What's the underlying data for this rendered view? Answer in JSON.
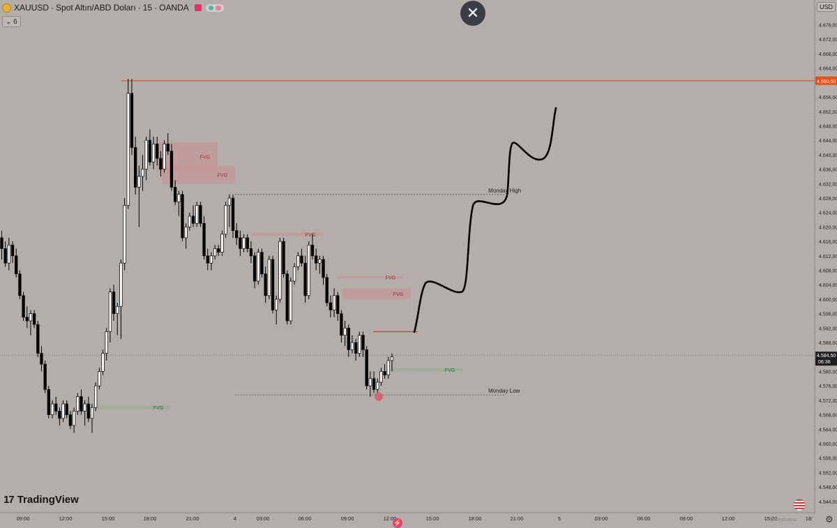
{
  "header": {
    "symbol": "XAUUSD",
    "description": "Spot Altın/ABD Doları",
    "interval": "15",
    "broker": "OANDA",
    "indicator_count": "6"
  },
  "price_axis": {
    "currency": "USD",
    "ticks": [
      "4.676,00",
      "4.672,00",
      "4.668,00",
      "4.664,00",
      "4.660,50",
      "4.656,00",
      "4.652,00",
      "4.648,00",
      "4.644,00",
      "4.640,00",
      "4.636,00",
      "4.632,00",
      "4.628,00",
      "4.624,00",
      "4.620,00",
      "4.616,00",
      "4.612,00",
      "4.608,00",
      "4.604,00",
      "4.600,00",
      "4.596,00",
      "4.592,00",
      "4.588,00",
      "4.584,50",
      "4.580,00",
      "4.576,00",
      "4.572,00",
      "4.568,00",
      "4.564,00",
      "4.560,00",
      "4.556,00",
      "4.552,00",
      "4.548,00",
      "4.544,00"
    ],
    "current_price": "4.584,50",
    "countdown": "06:36",
    "level_price": "4.660,50"
  },
  "time_axis": {
    "labels": [
      "09:00",
      "12:00",
      "15:00",
      "18:00",
      "21:00",
      "4",
      "03:00",
      "06:00",
      "09:00",
      "12:00",
      "15:00",
      "18:00",
      "21:00",
      "5",
      "03:00",
      "06:00",
      "09:00",
      "12:00",
      "15:00",
      "18:"
    ]
  },
  "branding": {
    "logo_text": "TradingView",
    "watermark": "@Rayhanoo"
  },
  "icons": [
    "close-icon",
    "gear-icon",
    "bolt-icon",
    "us-flag-icon",
    "tradingview-logo-icon"
  ],
  "colors": {
    "background": "#b3aeaa",
    "resistance_line": "#e8501a",
    "fvg_bear": "#c98f8f",
    "fvg_bull": "#8fae8a",
    "red_line": "#e8404a",
    "projection": "#000000"
  },
  "chart_data": {
    "type": "candlestick",
    "symbol": "XAUUSD",
    "timeframe": "15",
    "ylim": [
      4543,
      4679
    ],
    "candles": [
      {
        "t": "07:30",
        "o": 4617,
        "h": 4619,
        "l": 4611,
        "c": 4614
      },
      {
        "t": "07:45",
        "o": 4614,
        "h": 4616,
        "l": 4609,
        "c": 4610
      },
      {
        "t": "08:00",
        "o": 4610,
        "h": 4617,
        "l": 4608,
        "c": 4615
      },
      {
        "t": "08:15",
        "o": 4615,
        "h": 4616,
        "l": 4610,
        "c": 4612
      },
      {
        "t": "08:30",
        "o": 4612,
        "h": 4614,
        "l": 4606,
        "c": 4607
      },
      {
        "t": "08:45",
        "o": 4607,
        "h": 4608,
        "l": 4600,
        "c": 4601
      },
      {
        "t": "09:00",
        "o": 4601,
        "h": 4602,
        "l": 4594,
        "c": 4595
      },
      {
        "t": "09:15",
        "o": 4595,
        "h": 4598,
        "l": 4592,
        "c": 4594
      },
      {
        "t": "09:30",
        "o": 4594,
        "h": 4597,
        "l": 4590,
        "c": 4596
      },
      {
        "t": "09:45",
        "o": 4596,
        "h": 4597,
        "l": 4592,
        "c": 4593
      },
      {
        "t": "10:00",
        "o": 4593,
        "h": 4594,
        "l": 4584,
        "c": 4585
      },
      {
        "t": "10:15",
        "o": 4585,
        "h": 4587,
        "l": 4580,
        "c": 4582
      },
      {
        "t": "10:30",
        "o": 4582,
        "h": 4583,
        "l": 4574,
        "c": 4575
      },
      {
        "t": "10:45",
        "o": 4575,
        "h": 4576,
        "l": 4567,
        "c": 4568
      },
      {
        "t": "11:00",
        "o": 4568,
        "h": 4572,
        "l": 4567,
        "c": 4571
      },
      {
        "t": "11:15",
        "o": 4571,
        "h": 4573,
        "l": 4568,
        "c": 4569
      },
      {
        "t": "11:30",
        "o": 4569,
        "h": 4570,
        "l": 4565,
        "c": 4567
      },
      {
        "t": "11:45",
        "o": 4567,
        "h": 4572,
        "l": 4566,
        "c": 4571
      },
      {
        "t": "12:00",
        "o": 4571,
        "h": 4572,
        "l": 4567,
        "c": 4568
      },
      {
        "t": "12:15",
        "o": 4568,
        "h": 4569,
        "l": 4564,
        "c": 4565
      },
      {
        "t": "12:30",
        "o": 4565,
        "h": 4570,
        "l": 4563,
        "c": 4569
      },
      {
        "t": "12:45",
        "o": 4569,
        "h": 4574,
        "l": 4568,
        "c": 4573
      },
      {
        "t": "13:00",
        "o": 4573,
        "h": 4575,
        "l": 4568,
        "c": 4569
      },
      {
        "t": "13:15",
        "o": 4569,
        "h": 4572,
        "l": 4565,
        "c": 4571
      },
      {
        "t": "13:30",
        "o": 4571,
        "h": 4573,
        "l": 4566,
        "c": 4567
      },
      {
        "t": "13:45",
        "o": 4567,
        "h": 4571,
        "l": 4563,
        "c": 4570
      },
      {
        "t": "14:00",
        "o": 4570,
        "h": 4577,
        "l": 4569,
        "c": 4576
      },
      {
        "t": "14:15",
        "o": 4576,
        "h": 4581,
        "l": 4575,
        "c": 4580
      },
      {
        "t": "14:30",
        "o": 4580,
        "h": 4586,
        "l": 4579,
        "c": 4585
      },
      {
        "t": "14:45",
        "o": 4585,
        "h": 4592,
        "l": 4583,
        "c": 4591
      },
      {
        "t": "15:00",
        "o": 4591,
        "h": 4603,
        "l": 4588,
        "c": 4602
      },
      {
        "t": "15:15",
        "o": 4602,
        "h": 4604,
        "l": 4594,
        "c": 4596
      },
      {
        "t": "15:30",
        "o": 4596,
        "h": 4599,
        "l": 4590,
        "c": 4598
      },
      {
        "t": "15:45",
        "o": 4598,
        "h": 4611,
        "l": 4589,
        "c": 4610
      },
      {
        "t": "16:00",
        "o": 4610,
        "h": 4628,
        "l": 4608,
        "c": 4626
      },
      {
        "t": "16:15",
        "o": 4626,
        "h": 4661,
        "l": 4625,
        "c": 4657
      },
      {
        "t": "16:30",
        "o": 4657,
        "h": 4661,
        "l": 4640,
        "c": 4642
      },
      {
        "t": "16:45",
        "o": 4642,
        "h": 4645,
        "l": 4629,
        "c": 4631
      },
      {
        "t": "17:00",
        "o": 4631,
        "h": 4637,
        "l": 4620,
        "c": 4634
      },
      {
        "t": "17:15",
        "o": 4634,
        "h": 4640,
        "l": 4630,
        "c": 4636
      },
      {
        "t": "17:30",
        "o": 4636,
        "h": 4645,
        "l": 4633,
        "c": 4644
      },
      {
        "t": "17:45",
        "o": 4644,
        "h": 4647,
        "l": 4637,
        "c": 4638
      },
      {
        "t": "18:00",
        "o": 4638,
        "h": 4645,
        "l": 4636,
        "c": 4643
      },
      {
        "t": "18:15",
        "o": 4643,
        "h": 4645,
        "l": 4637,
        "c": 4639
      },
      {
        "t": "18:30",
        "o": 4639,
        "h": 4641,
        "l": 4634,
        "c": 4636
      },
      {
        "t": "18:45",
        "o": 4636,
        "h": 4644,
        "l": 4635,
        "c": 4643
      },
      {
        "t": "19:00",
        "o": 4643,
        "h": 4646,
        "l": 4640,
        "c": 4641
      },
      {
        "t": "19:15",
        "o": 4641,
        "h": 4643,
        "l": 4630,
        "c": 4631
      },
      {
        "t": "19:30",
        "o": 4631,
        "h": 4633,
        "l": 4626,
        "c": 4627
      },
      {
        "t": "19:45",
        "o": 4627,
        "h": 4630,
        "l": 4623,
        "c": 4629
      },
      {
        "t": "20:00",
        "o": 4629,
        "h": 4630,
        "l": 4616,
        "c": 4617
      },
      {
        "t": "20:15",
        "o": 4617,
        "h": 4621,
        "l": 4614,
        "c": 4620
      },
      {
        "t": "20:30",
        "o": 4620,
        "h": 4624,
        "l": 4619,
        "c": 4623
      },
      {
        "t": "20:45",
        "o": 4623,
        "h": 4626,
        "l": 4620,
        "c": 4621
      },
      {
        "t": "21:00",
        "o": 4621,
        "h": 4627,
        "l": 4620,
        "c": 4626
      },
      {
        "t": "21:15",
        "o": 4626,
        "h": 4627,
        "l": 4620,
        "c": 4621
      },
      {
        "t": "21:30",
        "o": 4621,
        "h": 4623,
        "l": 4611,
        "c": 4612
      },
      {
        "t": "21:45",
        "o": 4612,
        "h": 4614,
        "l": 4608,
        "c": 4610
      },
      {
        "t": "22:00",
        "o": 4610,
        "h": 4613,
        "l": 4608,
        "c": 4612
      },
      {
        "t": "22:15",
        "o": 4612,
        "h": 4615,
        "l": 4611,
        "c": 4614
      },
      {
        "t": "22:30",
        "o": 4614,
        "h": 4615,
        "l": 4612,
        "c": 4613
      },
      {
        "t": "23:00",
        "o": 4613,
        "h": 4619,
        "l": 4612,
        "c": 4618
      },
      {
        "t": "23:15",
        "o": 4618,
        "h": 4627,
        "l": 4617,
        "c": 4626
      },
      {
        "t": "23:30",
        "o": 4626,
        "h": 4629,
        "l": 4620,
        "c": 4628
      },
      {
        "t": "23:45",
        "o": 4628,
        "h": 4629,
        "l": 4617,
        "c": 4619
      },
      {
        "t": "00:00",
        "o": 4619,
        "h": 4621,
        "l": 4615,
        "c": 4617
      },
      {
        "t": "00:15",
        "o": 4617,
        "h": 4619,
        "l": 4612,
        "c": 4614
      },
      {
        "t": "00:30",
        "o": 4614,
        "h": 4618,
        "l": 4613,
        "c": 4617
      },
      {
        "t": "00:45",
        "o": 4617,
        "h": 4618,
        "l": 4613,
        "c": 4614
      },
      {
        "t": "01:00",
        "o": 4614,
        "h": 4616,
        "l": 4610,
        "c": 4612
      },
      {
        "t": "01:15",
        "o": 4612,
        "h": 4613,
        "l": 4603,
        "c": 4605
      },
      {
        "t": "01:30",
        "o": 4605,
        "h": 4614,
        "l": 4604,
        "c": 4613
      },
      {
        "t": "01:45",
        "o": 4613,
        "h": 4614,
        "l": 4606,
        "c": 4607
      },
      {
        "t": "02:00",
        "o": 4607,
        "h": 4609,
        "l": 4599,
        "c": 4601
      },
      {
        "t": "02:15",
        "o": 4601,
        "h": 4612,
        "l": 4600,
        "c": 4611
      },
      {
        "t": "02:30",
        "o": 4611,
        "h": 4612,
        "l": 4596,
        "c": 4597
      },
      {
        "t": "02:45",
        "o": 4597,
        "h": 4601,
        "l": 4593,
        "c": 4600
      },
      {
        "t": "03:00",
        "o": 4600,
        "h": 4617,
        "l": 4599,
        "c": 4616
      },
      {
        "t": "03:15",
        "o": 4616,
        "h": 4617,
        "l": 4606,
        "c": 4607
      },
      {
        "t": "03:30",
        "o": 4607,
        "h": 4608,
        "l": 4593,
        "c": 4594
      },
      {
        "t": "03:45",
        "o": 4594,
        "h": 4606,
        "l": 4593,
        "c": 4605
      },
      {
        "t": "04:00",
        "o": 4605,
        "h": 4610,
        "l": 4604,
        "c": 4609
      },
      {
        "t": "04:15",
        "o": 4609,
        "h": 4613,
        "l": 4608,
        "c": 4612
      },
      {
        "t": "04:30",
        "o": 4612,
        "h": 4614,
        "l": 4609,
        "c": 4610
      },
      {
        "t": "04:45",
        "o": 4610,
        "h": 4612,
        "l": 4599,
        "c": 4601
      },
      {
        "t": "05:00",
        "o": 4601,
        "h": 4616,
        "l": 4600,
        "c": 4615
      },
      {
        "t": "05:15",
        "o": 4615,
        "h": 4618,
        "l": 4611,
        "c": 4612
      },
      {
        "t": "05:30",
        "o": 4612,
        "h": 4614,
        "l": 4608,
        "c": 4610
      },
      {
        "t": "05:45",
        "o": 4610,
        "h": 4612,
        "l": 4607,
        "c": 4611
      },
      {
        "t": "06:00",
        "o": 4611,
        "h": 4612,
        "l": 4604,
        "c": 4606
      },
      {
        "t": "06:15",
        "o": 4606,
        "h": 4607,
        "l": 4598,
        "c": 4599
      },
      {
        "t": "06:30",
        "o": 4599,
        "h": 4601,
        "l": 4595,
        "c": 4597
      },
      {
        "t": "06:45",
        "o": 4597,
        "h": 4603,
        "l": 4595,
        "c": 4601
      },
      {
        "t": "07:00",
        "o": 4601,
        "h": 4602,
        "l": 4594,
        "c": 4596
      },
      {
        "t": "07:15",
        "o": 4596,
        "h": 4597,
        "l": 4588,
        "c": 4590
      },
      {
        "t": "07:30",
        "o": 4590,
        "h": 4594,
        "l": 4587,
        "c": 4592
      },
      {
        "t": "07:45",
        "o": 4592,
        "h": 4593,
        "l": 4584,
        "c": 4586
      },
      {
        "t": "08:00",
        "o": 4586,
        "h": 4590,
        "l": 4585,
        "c": 4588
      },
      {
        "t": "08:15",
        "o": 4588,
        "h": 4589,
        "l": 4583,
        "c": 4585
      },
      {
        "t": "08:30",
        "o": 4585,
        "h": 4591,
        "l": 4584,
        "c": 4590
      },
      {
        "t": "08:45",
        "o": 4590,
        "h": 4591,
        "l": 4584,
        "c": 4586
      },
      {
        "t": "09:00",
        "o": 4586,
        "h": 4587,
        "l": 4575,
        "c": 4576
      },
      {
        "t": "09:15",
        "o": 4576,
        "h": 4580,
        "l": 4573,
        "c": 4578
      },
      {
        "t": "09:30",
        "o": 4578,
        "h": 4580,
        "l": 4574,
        "c": 4575
      },
      {
        "t": "09:45",
        "o": 4575,
        "h": 4578,
        "l": 4574,
        "c": 4577
      },
      {
        "t": "10:00",
        "o": 4577,
        "h": 4581,
        "l": 4576,
        "c": 4580
      },
      {
        "t": "10:15",
        "o": 4580,
        "h": 4582,
        "l": 4578,
        "c": 4579
      },
      {
        "t": "10:30",
        "o": 4579,
        "h": 4584,
        "l": 4578,
        "c": 4583
      },
      {
        "t": "10:45",
        "o": 4583,
        "h": 4585,
        "l": 4580,
        "c": 4584
      }
    ],
    "levels": [
      {
        "name": "resistance",
        "price": 4660.5,
        "color": "#e8501a"
      },
      {
        "name": "Monday High",
        "price": 4629
      },
      {
        "name": "Monday Low",
        "price": 4573.5
      },
      {
        "name": "current",
        "price": 4584.5
      }
    ],
    "fvg_zones": [
      {
        "label": "FVG",
        "type": "bear",
        "top": 4643.5,
        "bottom": 4635.5
      },
      {
        "label": "FVG",
        "type": "bear",
        "top": 4637,
        "bottom": 4632
      },
      {
        "label": "FVG",
        "type": "bear",
        "top": 4618.5,
        "bottom": 4617.5
      },
      {
        "label": "FVG",
        "type": "bear",
        "top": 4606.5,
        "bottom": 4606
      },
      {
        "label": "FVG",
        "type": "bear",
        "top": 4603,
        "bottom": 4600
      },
      {
        "label": "FVG",
        "type": "bull",
        "top": 4581,
        "bottom": 4580
      },
      {
        "label": "FVG",
        "type": "bull",
        "top": 4570.5,
        "bottom": 4569.5
      }
    ],
    "annotations": [
      "Monday High",
      "Monday Low",
      "FVG"
    ]
  }
}
